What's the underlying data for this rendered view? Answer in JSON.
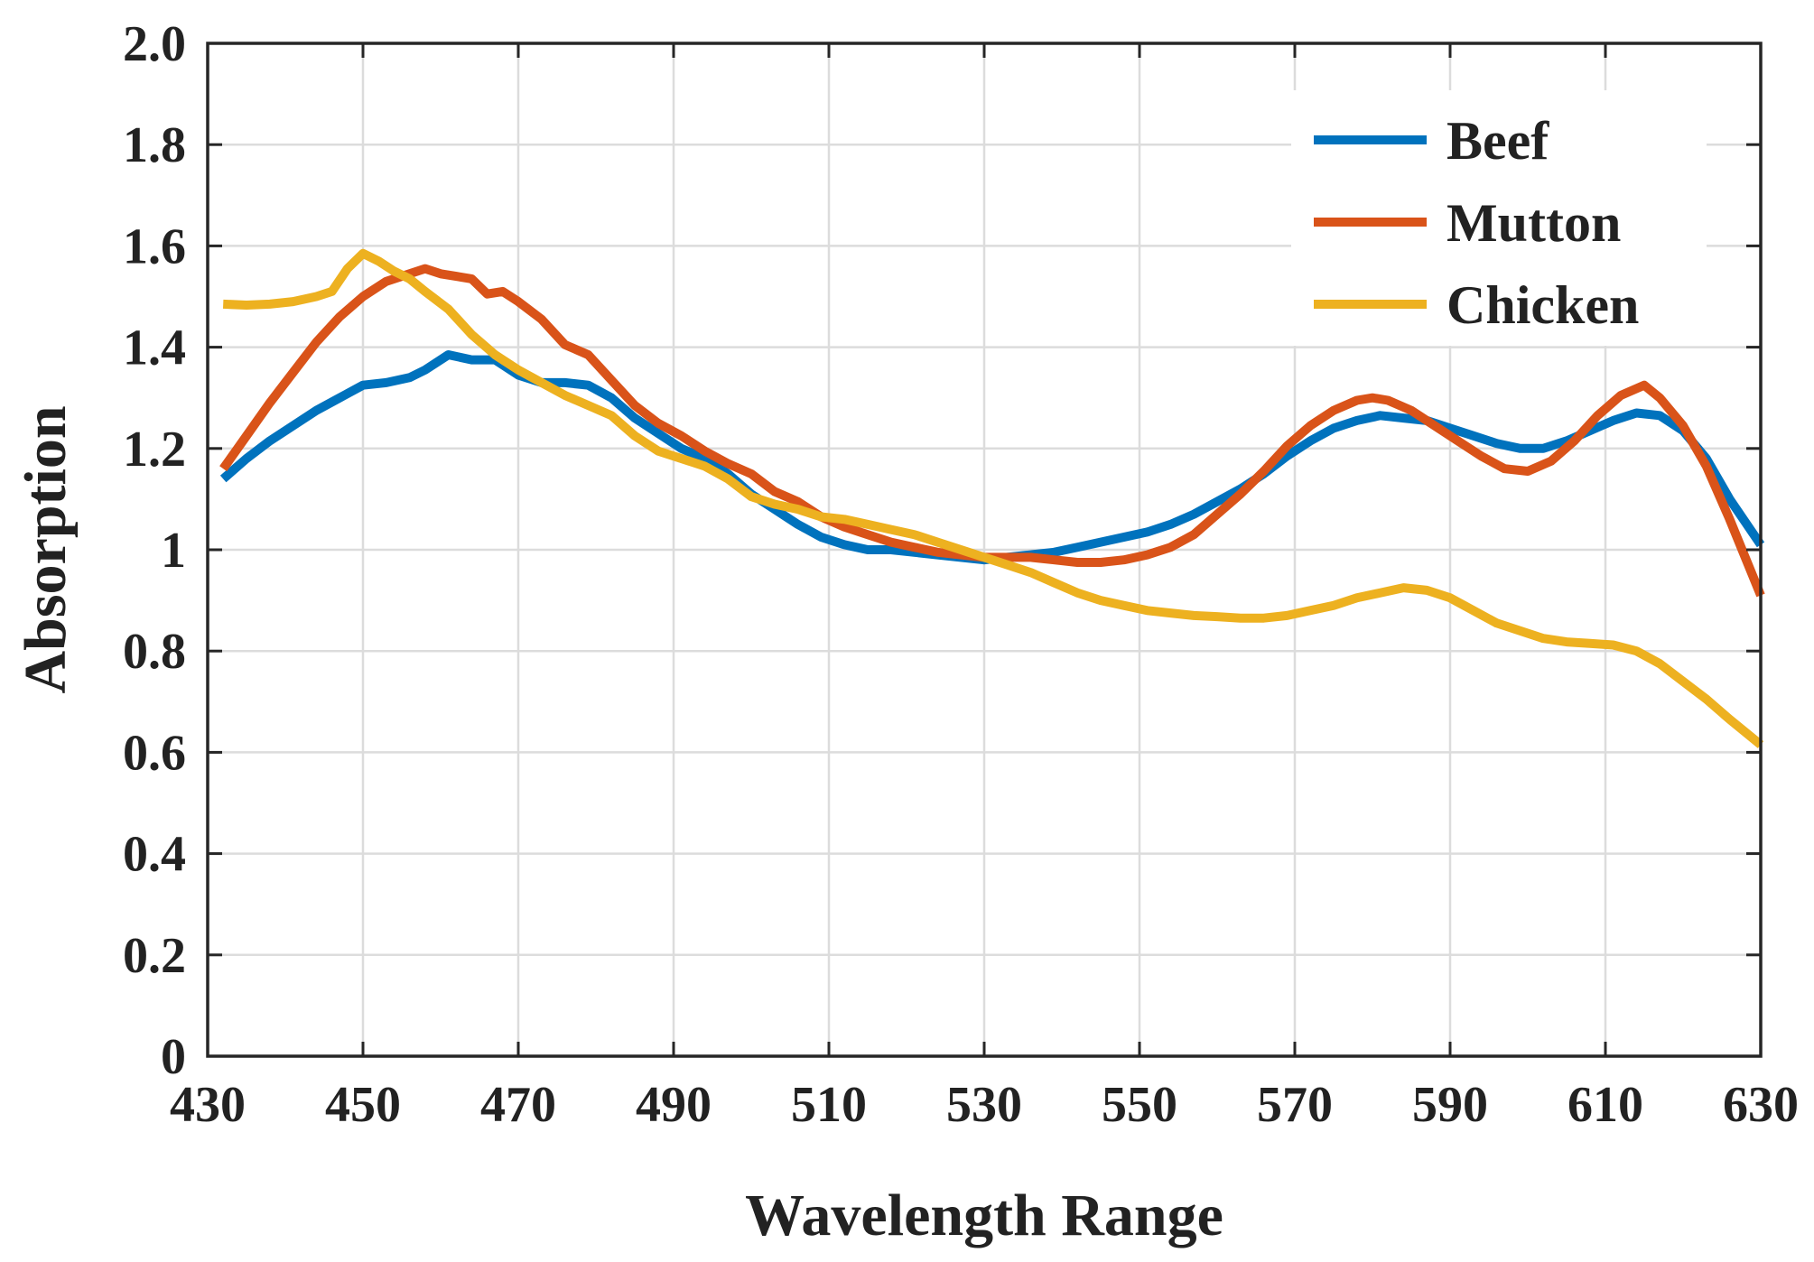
{
  "chart_data": {
    "type": "line",
    "title": "",
    "xlabel": "Wavelength Range",
    "ylabel": "Absorption",
    "xlim": [
      430,
      630
    ],
    "ylim": [
      0,
      2.0
    ],
    "grid": true,
    "legend_position": "top-right",
    "x_ticks": [
      430,
      450,
      470,
      490,
      510,
      530,
      550,
      570,
      590,
      610,
      630
    ],
    "x_tick_labels": [
      "430",
      "450",
      "470",
      "490",
      "510",
      "530",
      "550",
      "570",
      "590",
      "610",
      "630"
    ],
    "y_ticks": [
      0,
      0.2,
      0.4,
      0.6,
      0.8,
      1.0,
      1.2,
      1.4,
      1.6,
      1.8,
      2.0
    ],
    "y_tick_labels": [
      "0",
      "0.2",
      "0.4",
      "0.6",
      "0.8",
      "1",
      "1.2",
      "1.4",
      "1.6",
      "1.8",
      "2.0"
    ],
    "series": [
      {
        "name": "Beef",
        "color": "#0072BD",
        "x": [
          432,
          435,
          438,
          441,
          444,
          447,
          450,
          453,
          456,
          458,
          461,
          464,
          467,
          470,
          473,
          476,
          479,
          482,
          485,
          488,
          491,
          494,
          497,
          500,
          503,
          506,
          509,
          512,
          515,
          518,
          521,
          524,
          527,
          530,
          533,
          536,
          539,
          542,
          545,
          548,
          551,
          554,
          557,
          560,
          563,
          566,
          569,
          572,
          575,
          578,
          581,
          584,
          587,
          590,
          593,
          596,
          599,
          602,
          605,
          608,
          611,
          614,
          617,
          620,
          623,
          626,
          630
        ],
        "values": [
          1.14,
          1.18,
          1.215,
          1.245,
          1.275,
          1.3,
          1.325,
          1.33,
          1.34,
          1.355,
          1.385,
          1.375,
          1.375,
          1.345,
          1.33,
          1.33,
          1.325,
          1.3,
          1.26,
          1.23,
          1.2,
          1.18,
          1.15,
          1.11,
          1.08,
          1.05,
          1.025,
          1.01,
          1.0,
          1.0,
          0.995,
          0.99,
          0.985,
          0.98,
          0.985,
          0.99,
          0.995,
          1.005,
          1.015,
          1.025,
          1.035,
          1.05,
          1.07,
          1.095,
          1.12,
          1.15,
          1.185,
          1.215,
          1.24,
          1.255,
          1.265,
          1.26,
          1.255,
          1.24,
          1.225,
          1.21,
          1.2,
          1.2,
          1.215,
          1.235,
          1.255,
          1.27,
          1.265,
          1.235,
          1.18,
          1.1,
          1.01
        ]
      },
      {
        "name": "Mutton",
        "color": "#D95319",
        "x": [
          432,
          435,
          438,
          441,
          444,
          447,
          450,
          453,
          456,
          458,
          460,
          462,
          464,
          466,
          468,
          470,
          473,
          476,
          479,
          482,
          485,
          488,
          491,
          494,
          497,
          500,
          503,
          506,
          509,
          512,
          515,
          518,
          521,
          524,
          527,
          530,
          533,
          536,
          539,
          542,
          545,
          548,
          551,
          554,
          557,
          560,
          563,
          566,
          569,
          572,
          575,
          578,
          580,
          582,
          585,
          588,
          591,
          594,
          597,
          600,
          603,
          606,
          609,
          612,
          615,
          617,
          620,
          623,
          626,
          630
        ],
        "values": [
          1.16,
          1.225,
          1.29,
          1.35,
          1.41,
          1.46,
          1.5,
          1.53,
          1.545,
          1.555,
          1.545,
          1.54,
          1.535,
          1.505,
          1.51,
          1.49,
          1.455,
          1.405,
          1.385,
          1.335,
          1.285,
          1.25,
          1.225,
          1.195,
          1.17,
          1.15,
          1.115,
          1.095,
          1.065,
          1.045,
          1.03,
          1.015,
          1.005,
          0.995,
          0.99,
          0.985,
          0.985,
          0.985,
          0.98,
          0.975,
          0.975,
          0.98,
          0.99,
          1.005,
          1.03,
          1.07,
          1.11,
          1.155,
          1.205,
          1.245,
          1.275,
          1.295,
          1.3,
          1.295,
          1.275,
          1.245,
          1.215,
          1.185,
          1.16,
          1.155,
          1.175,
          1.215,
          1.265,
          1.305,
          1.325,
          1.3,
          1.245,
          1.165,
          1.06,
          0.91
        ]
      },
      {
        "name": "Chicken",
        "color": "#EDB120",
        "x": [
          432,
          435,
          438,
          441,
          444,
          446,
          448,
          450,
          452,
          454,
          456,
          458,
          461,
          464,
          467,
          470,
          473,
          476,
          479,
          482,
          485,
          488,
          491,
          494,
          497,
          500,
          503,
          506,
          509,
          512,
          515,
          518,
          521,
          524,
          527,
          530,
          533,
          536,
          539,
          542,
          545,
          548,
          551,
          554,
          557,
          560,
          563,
          566,
          569,
          572,
          575,
          578,
          581,
          584,
          587,
          590,
          593,
          596,
          599,
          602,
          605,
          608,
          611,
          614,
          617,
          620,
          623,
          626,
          630
        ],
        "values": [
          1.485,
          1.483,
          1.485,
          1.49,
          1.5,
          1.51,
          1.555,
          1.585,
          1.57,
          1.55,
          1.535,
          1.51,
          1.475,
          1.425,
          1.385,
          1.355,
          1.33,
          1.305,
          1.285,
          1.265,
          1.225,
          1.195,
          1.18,
          1.165,
          1.14,
          1.105,
          1.09,
          1.08,
          1.065,
          1.06,
          1.05,
          1.04,
          1.03,
          1.015,
          1.0,
          0.985,
          0.97,
          0.955,
          0.935,
          0.915,
          0.9,
          0.89,
          0.88,
          0.875,
          0.87,
          0.868,
          0.865,
          0.865,
          0.87,
          0.88,
          0.89,
          0.905,
          0.915,
          0.925,
          0.92,
          0.905,
          0.88,
          0.855,
          0.84,
          0.825,
          0.818,
          0.815,
          0.812,
          0.8,
          0.775,
          0.74,
          0.705,
          0.665,
          0.615
        ]
      }
    ]
  }
}
